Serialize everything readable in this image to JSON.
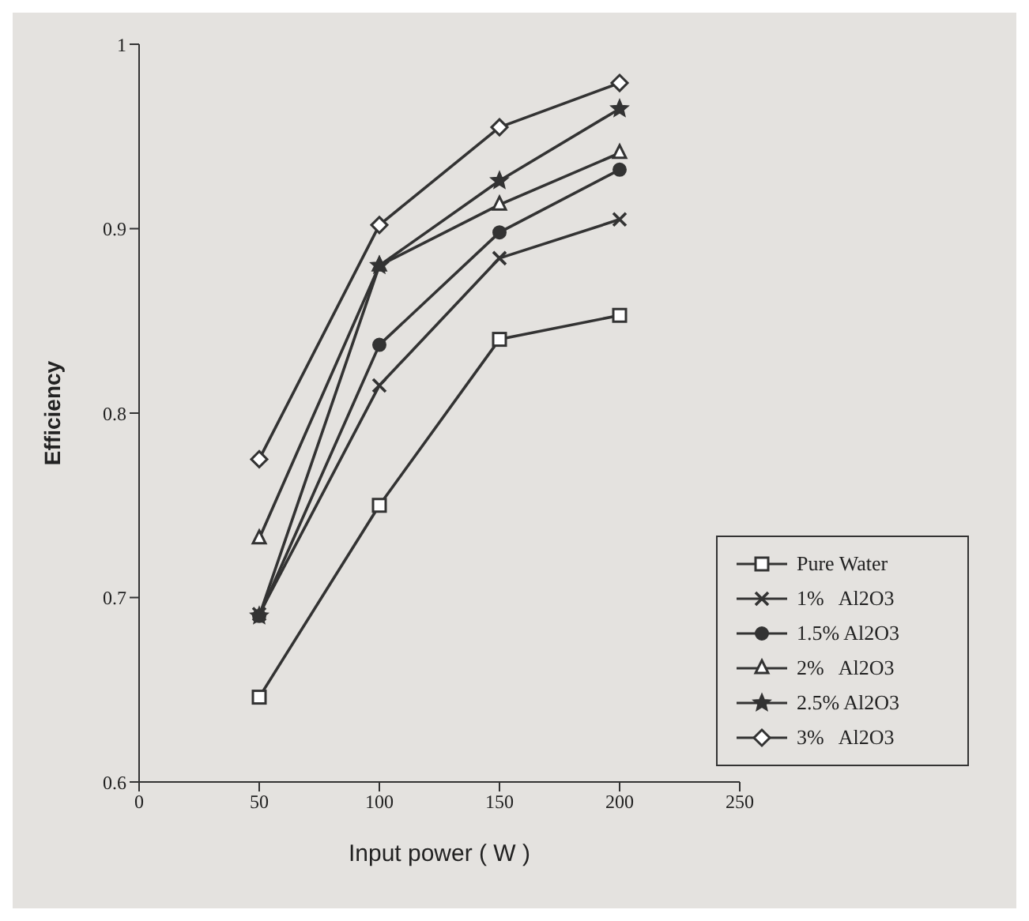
{
  "chart_data": {
    "type": "line",
    "xlabel": "Input power ( W )",
    "ylabel": "Efficiency",
    "x": [
      50,
      100,
      150,
      200
    ],
    "xlim": [
      0,
      250
    ],
    "xticks": [
      0,
      50,
      100,
      150,
      200,
      250
    ],
    "ylim": [
      0.6,
      1
    ],
    "yticks": [
      0.6,
      0.7,
      0.8,
      0.9,
      1
    ],
    "grid": false,
    "legend": "bottom right",
    "series": [
      {
        "name": "Pure Water",
        "color": "#333333",
        "marker": "square",
        "values": [
          0.646,
          0.75,
          0.84,
          0.853
        ]
      },
      {
        "name": "1%   Al2O3",
        "color": "#333333",
        "marker": "cross",
        "values": [
          0.691,
          0.815,
          0.884,
          0.905
        ]
      },
      {
        "name": "1.5% Al2O3",
        "color": "#333333",
        "marker": "circle",
        "values": [
          0.69,
          0.837,
          0.898,
          0.932
        ]
      },
      {
        "name": "2%   Al2O3",
        "color": "#333333",
        "marker": "triangle",
        "values": [
          0.732,
          0.88,
          0.913,
          0.941
        ]
      },
      {
        "name": "2.5% Al2O3",
        "color": "#333333",
        "marker": "star",
        "values": [
          0.69,
          0.88,
          0.926,
          0.965
        ]
      },
      {
        "name": "3%   Al2O3",
        "color": "#333333",
        "marker": "diamond",
        "values": [
          0.775,
          0.902,
          0.955,
          0.979
        ]
      }
    ]
  }
}
